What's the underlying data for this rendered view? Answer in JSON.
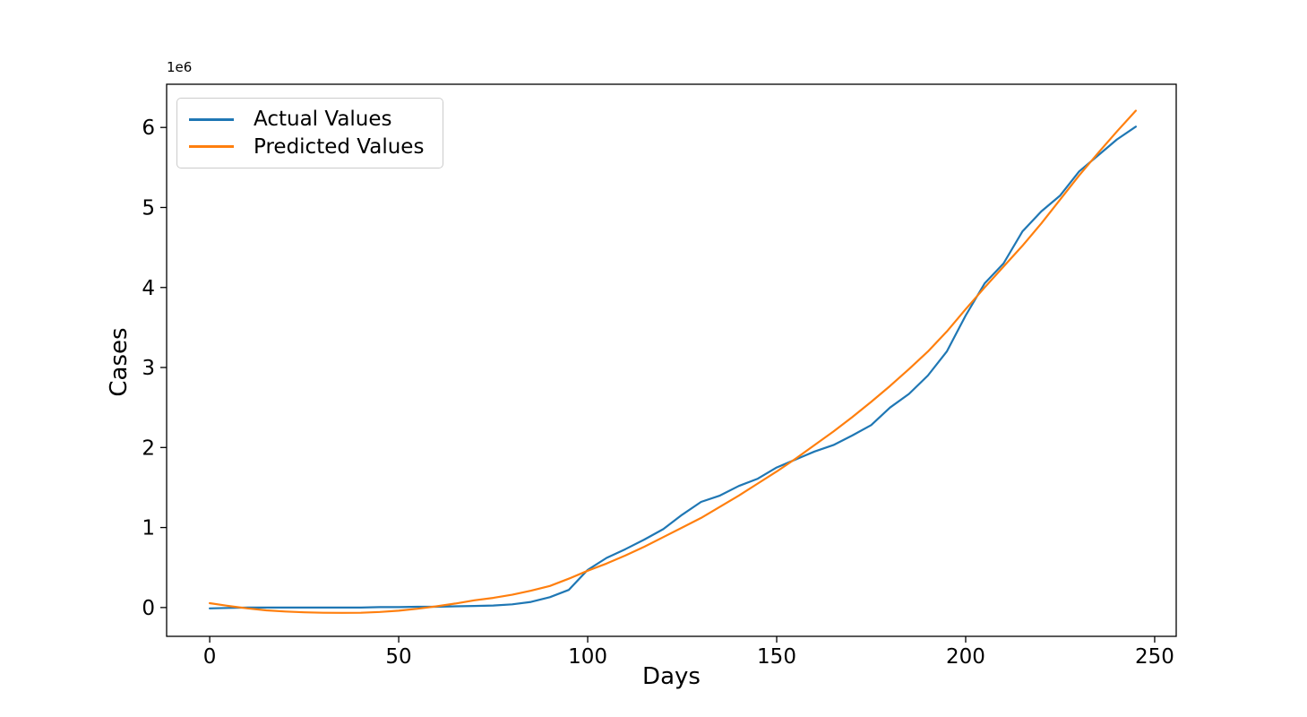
{
  "figure": {
    "background": "#ffffff",
    "text_color": "#000000",
    "spine_color": "#000000"
  },
  "chart_data": {
    "type": "line",
    "title": "",
    "xlabel": "Days",
    "ylabel": "Cases",
    "y_offset_text": "1e6",
    "grid": false,
    "legend_position": "upper left",
    "xlim": [
      -11.4,
      255.7
    ],
    "ylim": [
      -360000,
      6540000
    ],
    "x_ticks": [
      0,
      50,
      100,
      150,
      200,
      250
    ],
    "x_tick_labels": [
      "0",
      "50",
      "100",
      "150",
      "200",
      "250"
    ],
    "y_ticks": [
      0,
      1000000,
      2000000,
      3000000,
      4000000,
      5000000,
      6000000
    ],
    "y_tick_labels": [
      "0",
      "1",
      "2",
      "3",
      "4",
      "5",
      "6"
    ],
    "series": [
      {
        "name": "Actual Values",
        "color": "#1f77b4",
        "x": [
          0,
          5,
          10,
          15,
          20,
          25,
          30,
          35,
          40,
          45,
          50,
          55,
          60,
          65,
          70,
          75,
          80,
          85,
          90,
          95,
          100,
          105,
          110,
          115,
          120,
          125,
          130,
          135,
          140,
          145,
          150,
          155,
          160,
          165,
          170,
          175,
          180,
          185,
          190,
          195,
          200,
          205,
          210,
          215,
          220,
          225,
          230,
          235,
          240,
          245
        ],
        "y": [
          -10000,
          -5000,
          0,
          0,
          0,
          0,
          0,
          0,
          0,
          5000,
          5000,
          10000,
          10000,
          15000,
          20000,
          25000,
          40000,
          70000,
          130000,
          220000,
          470000,
          620000,
          730000,
          850000,
          980000,
          1160000,
          1320000,
          1400000,
          1520000,
          1610000,
          1750000,
          1850000,
          1950000,
          2030000,
          2150000,
          2280000,
          2500000,
          2670000,
          2900000,
          3200000,
          3650000,
          4050000,
          4300000,
          4700000,
          4950000,
          5150000,
          5450000,
          5650000,
          5850000,
          6010000
        ]
      },
      {
        "name": "Predicted Values",
        "color": "#ff7f0e",
        "x": [
          0,
          5,
          10,
          15,
          20,
          25,
          30,
          35,
          40,
          45,
          50,
          55,
          60,
          65,
          70,
          75,
          80,
          85,
          90,
          95,
          100,
          105,
          110,
          115,
          120,
          125,
          130,
          135,
          140,
          145,
          150,
          155,
          160,
          165,
          170,
          175,
          180,
          185,
          190,
          195,
          200,
          205,
          210,
          215,
          220,
          225,
          230,
          235,
          240,
          245
        ],
        "y": [
          55000,
          20000,
          -10000,
          -35000,
          -50000,
          -60000,
          -65000,
          -67000,
          -65000,
          -55000,
          -40000,
          -15000,
          15000,
          50000,
          90000,
          120000,
          160000,
          210000,
          270000,
          360000,
          460000,
          550000,
          650000,
          760000,
          880000,
          1000000,
          1120000,
          1260000,
          1400000,
          1550000,
          1700000,
          1860000,
          2030000,
          2200000,
          2380000,
          2570000,
          2770000,
          2980000,
          3200000,
          3450000,
          3730000,
          4000000,
          4260000,
          4520000,
          4800000,
          5100000,
          5400000,
          5680000,
          5950000,
          6210000
        ]
      }
    ]
  }
}
